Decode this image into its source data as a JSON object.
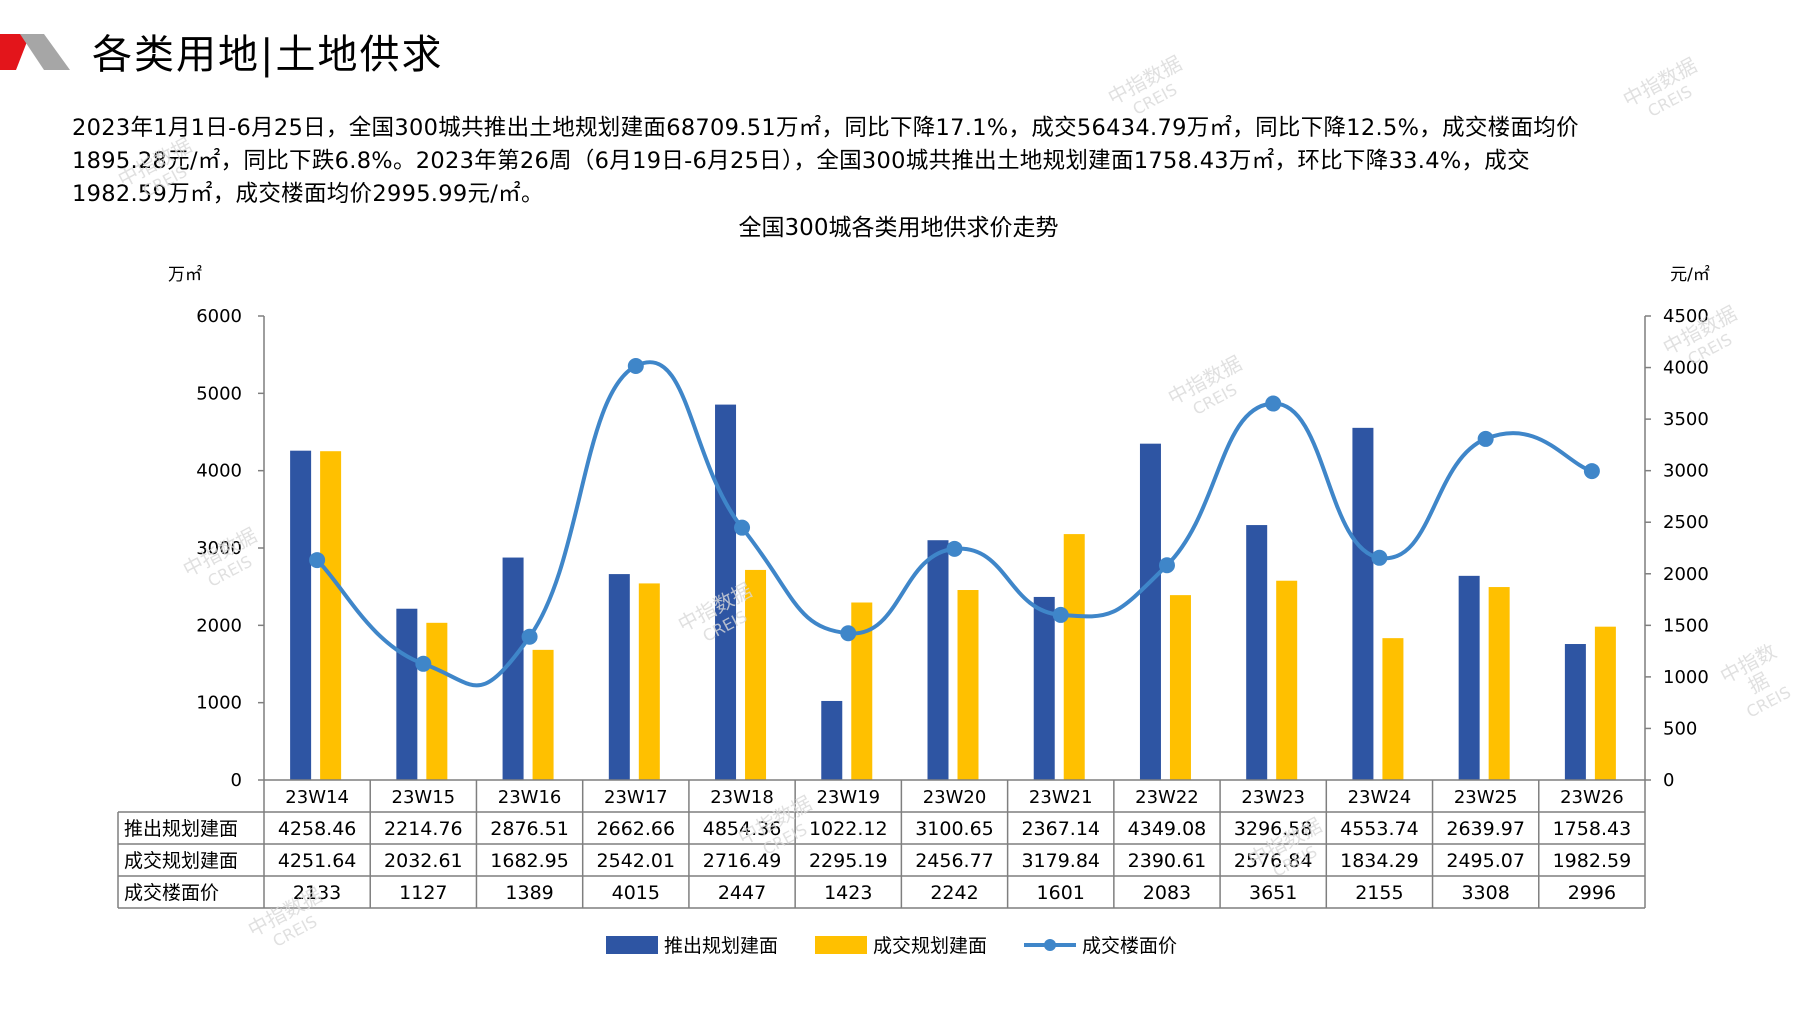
{
  "header": {
    "title": "各类用地|土地供求"
  },
  "summary": {
    "lines": [
      "2023年1月1日-6月25日，全国300城共推出土地规划建面68709.51万㎡，同比下降17.1%，成交56434.79万㎡，同比下降12.5%，成交楼面均价",
      "1895.28元/㎡，同比下跌6.8%。2023年第26周（6月19日-6月25日），全国300城共推出土地规划建面1758.43万㎡，环比下降33.4%，成交",
      "1982.59万㎡，成交楼面均价2995.99元/㎡。"
    ]
  },
  "watermark": {
    "cn": "中指数据",
    "en": "CREIS"
  },
  "colors": {
    "supply": "#2E55A3",
    "deal": "#FFC000",
    "price": "#3F86C9",
    "accent_red": "#E3151B",
    "accent_gray": "#A6A6A6"
  },
  "chart_data": {
    "type": "bar",
    "title": "全国300城各类用地供求价走势",
    "y_left_unit": "万㎡",
    "y_right_unit": "元/㎡",
    "ylim_left": [
      0,
      6000
    ],
    "ylim_right": [
      0,
      4500
    ],
    "yticks_left": [
      "6000",
      "5000",
      "4000",
      "3000",
      "2000",
      "1000",
      "0"
    ],
    "yticks_right": [
      "4500",
      "4000",
      "3500",
      "3000",
      "2500",
      "2000",
      "1500",
      "1000",
      "500",
      "0"
    ],
    "categories": [
      "23W14",
      "23W15",
      "23W16",
      "23W17",
      "23W18",
      "23W19",
      "23W20",
      "23W21",
      "23W22",
      "23W23",
      "23W24",
      "23W25",
      "23W26"
    ],
    "series": [
      {
        "name": "推出规划建面",
        "type": "bar",
        "axis": "left",
        "values": [
          4258.46,
          2214.76,
          2876.51,
          2662.66,
          4854.36,
          1022.12,
          3100.65,
          2367.14,
          4349.08,
          3296.58,
          4553.74,
          2639.97,
          1758.43
        ],
        "labels": [
          "4258.46",
          "2214.76",
          "2876.51",
          "2662.66",
          "4854.36",
          "1022.12",
          "3100.65",
          "2367.14",
          "4349.08",
          "3296.58",
          "4553.74",
          "2639.97",
          "1758.43"
        ]
      },
      {
        "name": "成交规划建面",
        "type": "bar",
        "axis": "left",
        "values": [
          4251.64,
          2032.61,
          1682.95,
          2542.01,
          2716.49,
          2295.19,
          2456.77,
          3179.84,
          2390.61,
          2576.84,
          1834.29,
          2495.07,
          1982.59
        ],
        "labels": [
          "4251.64",
          "2032.61",
          "1682.95",
          "2542.01",
          "2716.49",
          "2295.19",
          "2456.77",
          "3179.84",
          "2390.61",
          "2576.84",
          "1834.29",
          "2495.07",
          "1982.59"
        ]
      },
      {
        "name": "成交楼面价",
        "type": "line",
        "axis": "right",
        "values": [
          2133,
          1127,
          1389,
          4015,
          2447,
          1423,
          2242,
          1601,
          2083,
          3651,
          2155,
          3308,
          2996
        ],
        "labels": [
          "2133",
          "1127",
          "1389",
          "4015",
          "2447",
          "1423",
          "2242",
          "1601",
          "2083",
          "3651",
          "2155",
          "3308",
          "2996"
        ]
      }
    ],
    "legend_position": "bottom"
  }
}
